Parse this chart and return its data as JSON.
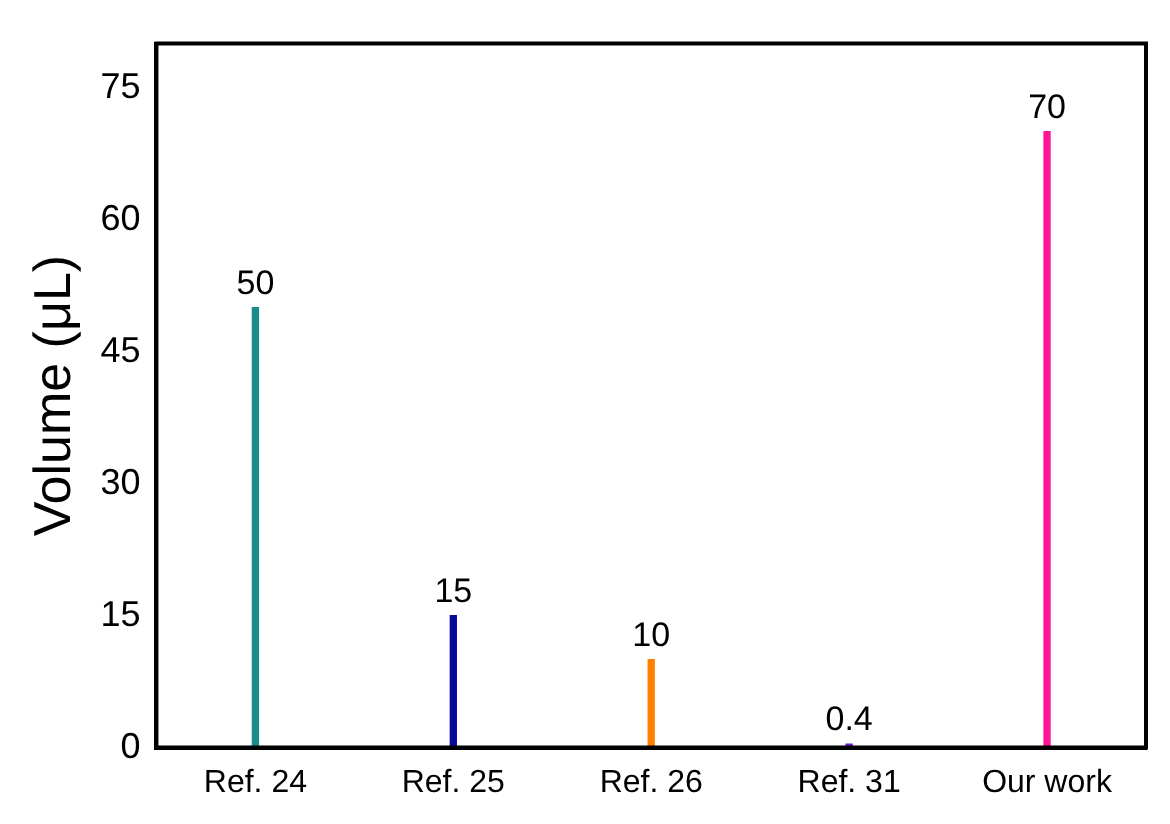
{
  "chart_data": {
    "type": "bar",
    "ylabel": "Volume (μL)",
    "categories": [
      "Ref. 24",
      "Ref. 25",
      "Ref. 26",
      "Ref. 31",
      "Our work"
    ],
    "values": [
      50,
      15,
      10,
      0.4,
      70
    ],
    "colors": [
      "#1a8c8c",
      "#0a0a9a",
      "#ff8000",
      "#6a1bd0",
      "#ff1493"
    ],
    "ylim": [
      0,
      80
    ],
    "yticks": [
      0,
      15,
      30,
      45,
      60,
      75
    ],
    "data_labels": true,
    "grid": false,
    "legend": false
  }
}
